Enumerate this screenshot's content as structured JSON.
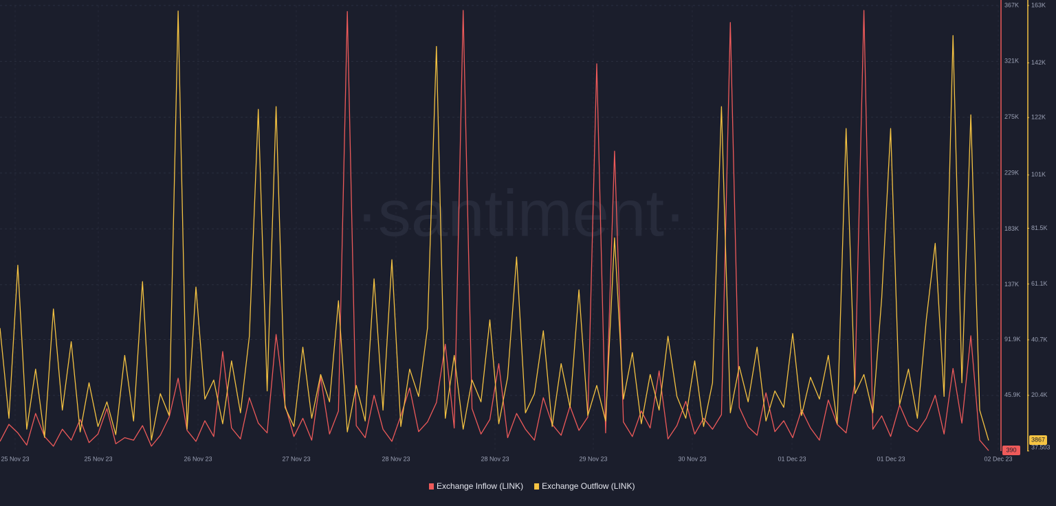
{
  "chart_data": {
    "type": "line",
    "watermark": "·santiment·",
    "grid": true,
    "xtick_labels": [
      "25 Nov 23",
      "25 Nov 23",
      "26 Nov 23",
      "27 Nov 23",
      "28 Nov 23",
      "28 Nov 23",
      "29 Nov 23",
      "30 Nov 23",
      "01 Dec 23",
      "01 Dec 23",
      "02 Dec 23"
    ],
    "ylim": [
      0,
      367000
    ],
    "yticks": [
      {
        "value": 45900,
        "label": "45.9K"
      },
      {
        "value": 91900,
        "label": "91.9K"
      },
      {
        "value": 137000,
        "label": "137K"
      },
      {
        "value": 183000,
        "label": "183K"
      },
      {
        "value": 229000,
        "label": "229K"
      },
      {
        "value": 275000,
        "label": "275K"
      },
      {
        "value": 321000,
        "label": "321K"
      },
      {
        "value": 367000,
        "label": "367K"
      }
    ],
    "y2lim": [
      0,
      163000
    ],
    "y2ticks": [
      37.503,
      {
        "value": 20400,
        "label": "20.4K"
      },
      {
        "value": 40700,
        "label": "40.7K"
      },
      {
        "value": 61100,
        "label": "61.1K"
      },
      {
        "value": 81500,
        "label": "81.5K"
      },
      {
        "value": 101000,
        "label": "101K"
      },
      {
        "value": 122000,
        "label": "122K"
      },
      {
        "value": 142000,
        "label": "142K"
      },
      {
        "value": 163000,
        "label": "163K"
      }
    ],
    "series": [
      {
        "name": "Exchange Inflow (LINK)",
        "color": "#ee5a5a",
        "values": [
          8000,
          22000,
          15000,
          5000,
          31000,
          12000,
          4000,
          18000,
          9000,
          26000,
          7000,
          14000,
          35000,
          6000,
          11000,
          9000,
          21000,
          4000,
          13000,
          28000,
          60000,
          17000,
          8000,
          25000,
          12000,
          82000,
          19000,
          10000,
          44000,
          23000,
          15000,
          96000,
          38000,
          12000,
          27000,
          9000,
          61000,
          14000,
          33000,
          362000,
          21000,
          11000,
          46000,
          18000,
          8000,
          29000,
          52000,
          16000,
          24000,
          40000,
          88000,
          19000,
          363000,
          35000,
          14000,
          26000,
          72000,
          11000,
          31000,
          18000,
          9000,
          44000,
          22000,
          13000,
          37000,
          17000,
          28000,
          319000,
          15000,
          247000,
          24000,
          12000,
          33000,
          19000,
          66000,
          10000,
          21000,
          41000,
          14000,
          27000,
          18000,
          30000,
          353000,
          36000,
          20000,
          13000,
          48000,
          16000,
          25000,
          11000,
          34000,
          19000,
          9000,
          42000,
          22000,
          15000,
          57000,
          363000,
          18000,
          29000,
          12000,
          38000,
          21000,
          16000,
          27000,
          46000,
          14000,
          68000,
          23000,
          95000,
          9000,
          390
        ]
      },
      {
        "name": "Exchange Outflow (LINK)",
        "color": "#f5c342",
        "axis": "y2",
        "values": [
          45000,
          12000,
          68000,
          8000,
          30000,
          5000,
          52000,
          15000,
          40000,
          7000,
          25000,
          9000,
          18000,
          6000,
          35000,
          11000,
          62000,
          4000,
          21000,
          13000,
          161000,
          8000,
          60000,
          19000,
          26000,
          10000,
          33000,
          14000,
          42000,
          125000,
          22000,
          126000,
          16000,
          9000,
          38000,
          12000,
          28000,
          18000,
          55000,
          7000,
          24000,
          11000,
          63000,
          15000,
          70000,
          9000,
          30000,
          20000,
          45000,
          148000,
          12000,
          35000,
          8000,
          26000,
          18000,
          48000,
          10000,
          27000,
          71000,
          14000,
          21000,
          44000,
          9000,
          32000,
          16000,
          59000,
          13000,
          24000,
          11000,
          78000,
          19000,
          36000,
          10000,
          28000,
          15000,
          42000,
          20000,
          12000,
          33000,
          9000,
          25000,
          126000,
          14000,
          31000,
          18000,
          38000,
          11000,
          22000,
          16000,
          43000,
          13000,
          27000,
          19000,
          35000,
          10000,
          118000,
          21000,
          28000,
          14000,
          56000,
          118000,
          17000,
          30000,
          12000,
          48000,
          76000,
          20000,
          152000,
          25000,
          123000,
          15000,
          3867
        ]
      }
    ]
  }
}
